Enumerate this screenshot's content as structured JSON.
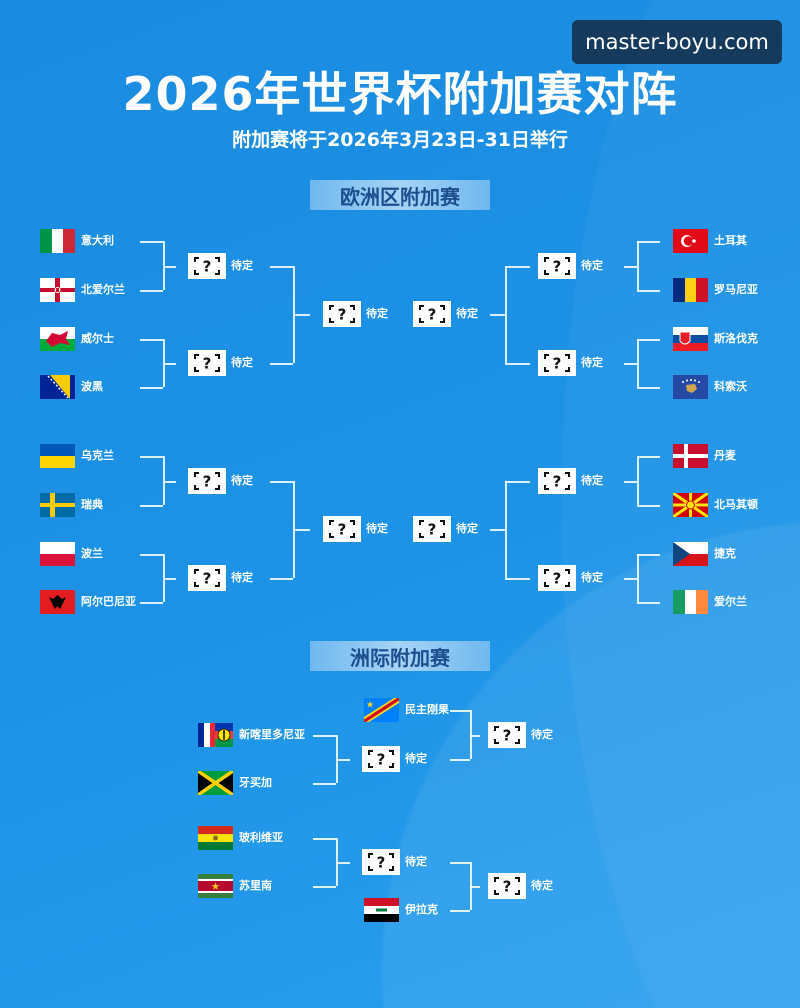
{
  "watermark": "master-boyu.com",
  "title": "2026年世界杯附加赛对阵",
  "subtitle": "附加赛将于2026年3月23日-31日举行",
  "tbd_label": "待定",
  "placeholder_icon": "question-mark-icon",
  "europe": {
    "label": "欧洲区附加赛",
    "paths": [
      {
        "teams": [
          {
            "name": "意大利",
            "flag": "italy"
          },
          {
            "name": "北爱尔兰",
            "flag": "northern-ireland"
          },
          {
            "name": "威尔士",
            "flag": "wales"
          },
          {
            "name": "波黑",
            "flag": "bosnia"
          }
        ]
      },
      {
        "teams": [
          {
            "name": "土耳其",
            "flag": "turkey"
          },
          {
            "name": "罗马尼亚",
            "flag": "romania"
          },
          {
            "name": "斯洛伐克",
            "flag": "slovakia"
          },
          {
            "name": "科索沃",
            "flag": "kosovo"
          }
        ]
      },
      {
        "teams": [
          {
            "name": "乌克兰",
            "flag": "ukraine"
          },
          {
            "name": "瑞典",
            "flag": "sweden"
          },
          {
            "name": "波兰",
            "flag": "poland"
          },
          {
            "name": "阿尔巴尼亚",
            "flag": "albania"
          }
        ]
      },
      {
        "teams": [
          {
            "name": "丹麦",
            "flag": "denmark"
          },
          {
            "name": "北马其顿",
            "flag": "north-macedonia"
          },
          {
            "name": "捷克",
            "flag": "czechia"
          },
          {
            "name": "爱尔兰",
            "flag": "ireland"
          }
        ]
      }
    ]
  },
  "intercontinental": {
    "label": "洲际附加赛",
    "paths": [
      {
        "seed": {
          "name": "民主刚果",
          "flag": "dr-congo"
        },
        "teams": [
          {
            "name": "新喀里多尼亚",
            "flag": "new-caledonia"
          },
          {
            "name": "牙买加",
            "flag": "jamaica"
          }
        ]
      },
      {
        "seed": {
          "name": "伊拉克",
          "flag": "iraq"
        },
        "teams": [
          {
            "name": "玻利维亚",
            "flag": "bolivia"
          },
          {
            "name": "苏里南",
            "flag": "suriname"
          }
        ]
      }
    ]
  }
}
